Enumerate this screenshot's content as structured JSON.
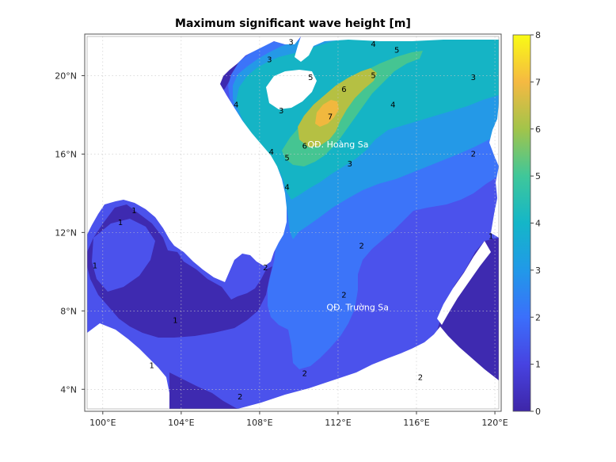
{
  "title": "Maximum significant wave height [m]",
  "map": {
    "lon_range": [
      99.2,
      120.2
    ],
    "lat_range": [
      3.0,
      22.0
    ],
    "x_ticks": [
      {
        "value": 100,
        "label": "100°E"
      },
      {
        "value": 104,
        "label": "104°E"
      },
      {
        "value": 108,
        "label": "108°E"
      },
      {
        "value": 112,
        "label": "112°E"
      },
      {
        "value": 116,
        "label": "116°E"
      },
      {
        "value": 120,
        "label": "120°E"
      }
    ],
    "y_ticks": [
      {
        "value": 4,
        "label": "4°N"
      },
      {
        "value": 8,
        "label": "8°N"
      },
      {
        "value": 12,
        "label": "12°N"
      },
      {
        "value": 16,
        "label": "16°N"
      },
      {
        "value": 20,
        "label": "20°N"
      }
    ],
    "place_labels": [
      {
        "text": "QĐ. Hoàng Sa",
        "lon": 112.0,
        "lat": 16.5
      },
      {
        "text": "QĐ. Trường Sa",
        "lon": 113.0,
        "lat": 8.2
      }
    ],
    "contour_labels": [
      {
        "text": "7",
        "lon": 111.6,
        "lat": 17.9
      },
      {
        "text": "6",
        "lon": 112.3,
        "lat": 19.3
      },
      {
        "text": "6",
        "lon": 110.3,
        "lat": 16.4
      },
      {
        "text": "5",
        "lon": 113.8,
        "lat": 20.0
      },
      {
        "text": "5",
        "lon": 115.0,
        "lat": 21.3
      },
      {
        "text": "5",
        "lon": 110.6,
        "lat": 19.9
      },
      {
        "text": "5",
        "lon": 109.4,
        "lat": 15.8
      },
      {
        "text": "4",
        "lon": 114.8,
        "lat": 18.5
      },
      {
        "text": "4",
        "lon": 106.8,
        "lat": 18.5
      },
      {
        "text": "4",
        "lon": 108.6,
        "lat": 16.1
      },
      {
        "text": "4",
        "lon": 109.4,
        "lat": 14.3
      },
      {
        "text": "4",
        "lon": 113.8,
        "lat": 21.6
      },
      {
        "text": "3",
        "lon": 118.9,
        "lat": 19.9
      },
      {
        "text": "3",
        "lon": 112.6,
        "lat": 15.5
      },
      {
        "text": "3",
        "lon": 108.5,
        "lat": 20.8
      },
      {
        "text": "3",
        "lon": 109.1,
        "lat": 18.2
      },
      {
        "text": "3",
        "lon": 109.6,
        "lat": 21.7
      },
      {
        "text": "2",
        "lon": 118.9,
        "lat": 16.0
      },
      {
        "text": "2",
        "lon": 113.2,
        "lat": 11.3
      },
      {
        "text": "2",
        "lon": 108.3,
        "lat": 10.2
      },
      {
        "text": "2",
        "lon": 112.3,
        "lat": 8.8
      },
      {
        "text": "2",
        "lon": 110.3,
        "lat": 4.8
      },
      {
        "text": "2",
        "lon": 116.2,
        "lat": 4.6
      },
      {
        "text": "2",
        "lon": 107.0,
        "lat": 3.6
      },
      {
        "text": "1",
        "lon": 119.8,
        "lat": 11.8
      },
      {
        "text": "1",
        "lon": 101.6,
        "lat": 13.1
      },
      {
        "text": "1",
        "lon": 103.7,
        "lat": 7.5
      },
      {
        "text": "1",
        "lon": 102.5,
        "lat": 5.2
      },
      {
        "text": "1",
        "lon": 99.6,
        "lat": 10.3
      },
      {
        "text": "1",
        "lon": 100.9,
        "lat": 12.5
      }
    ]
  },
  "colorbar": {
    "min": 0,
    "max": 8,
    "tick_labels": [
      "0",
      "1",
      "2",
      "3",
      "4",
      "5",
      "6",
      "7",
      "8"
    ],
    "colors": [
      "#3e26a8",
      "#4743e1",
      "#3b6ffb",
      "#2199e8",
      "#14b6c8",
      "#3fc79a",
      "#a2c44a",
      "#f5b942",
      "#f9fb15"
    ]
  }
}
